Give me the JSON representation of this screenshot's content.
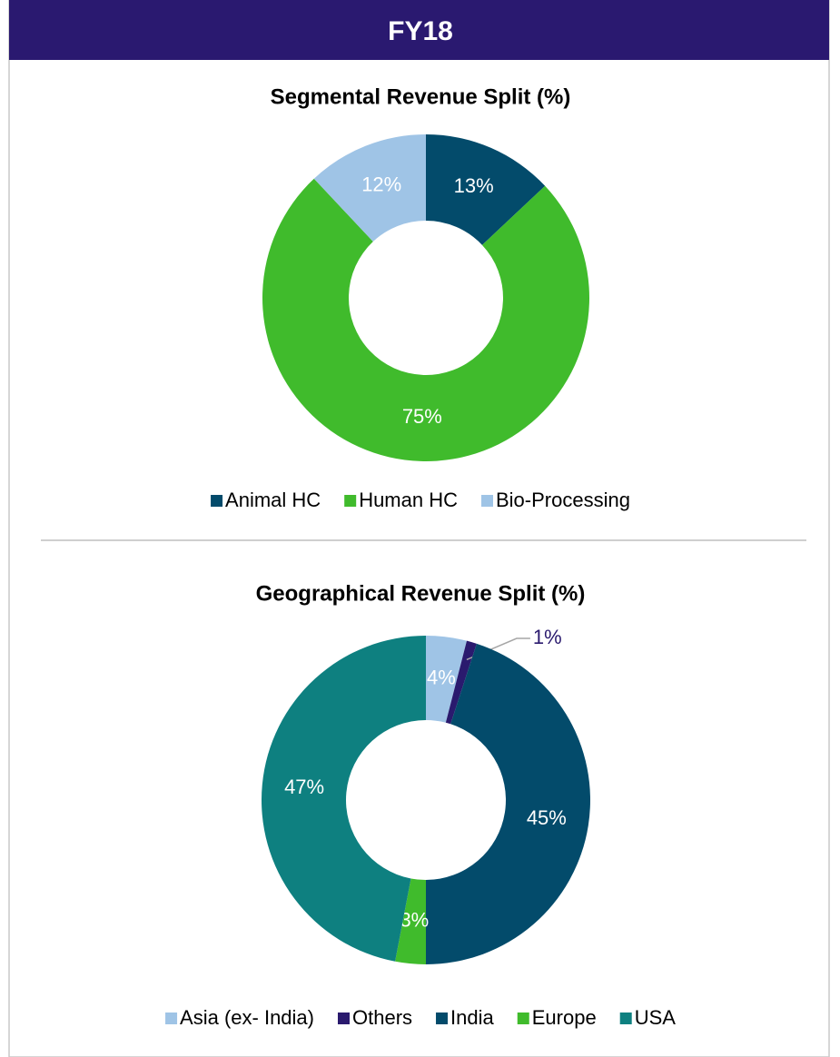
{
  "header": {
    "title": "FY18"
  },
  "chart_data": [
    {
      "type": "donut",
      "title": "Segmental Revenue Split (%)",
      "categories": [
        "Animal HC",
        "Human HC",
        "Bio-Processing"
      ],
      "values": [
        13,
        75,
        12
      ],
      "value_labels": [
        "13%",
        "75%",
        "12%"
      ],
      "colors": [
        "#034b6b",
        "#40bb2c",
        "#9fc4e6"
      ],
      "legend": "bottom"
    },
    {
      "type": "donut",
      "title": "Geographical Revenue Split (%)",
      "categories": [
        "Asia (ex- India)",
        "Others",
        "India",
        "Europe",
        "USA"
      ],
      "values": [
        4,
        1,
        45,
        3,
        47
      ],
      "value_labels": [
        "4%",
        "1%",
        "45%",
        "3%",
        "47%"
      ],
      "colors": [
        "#9fc4e6",
        "#2a1a6e",
        "#034b6b",
        "#40bb2c",
        "#0e8080"
      ],
      "legend": "bottom"
    }
  ]
}
